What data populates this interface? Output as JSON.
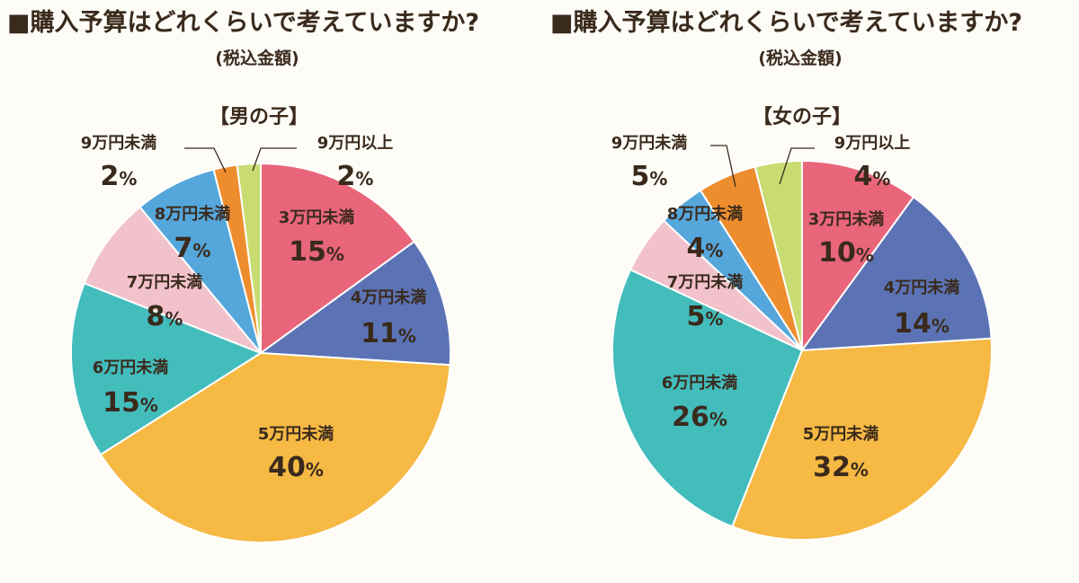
{
  "chart_data": [
    {
      "type": "pie",
      "title": "■購入予算はどれくらいで考えていますか?",
      "subtitle": "(税込金額)",
      "group_label": "【男の子】",
      "slices": [
        {
          "label": "9万円以上",
          "value": 2,
          "color": "#c8dc72"
        },
        {
          "label": "3万円未満",
          "value": 15,
          "color": "#e9667a"
        },
        {
          "label": "4万円未満",
          "value": 11,
          "color": "#5b73b4"
        },
        {
          "label": "5万円未満",
          "value": 40,
          "color": "#f5b944"
        },
        {
          "label": "6万円未満",
          "value": 15,
          "color": "#43bcbc"
        },
        {
          "label": "7万円未満",
          "value": 8,
          "color": "#f2c2cc"
        },
        {
          "label": "8万円未満",
          "value": 7,
          "color": "#55a6db"
        },
        {
          "label": "9万円未満",
          "value": 2,
          "color": "#ee8d2e"
        }
      ],
      "unit": "%"
    },
    {
      "type": "pie",
      "title": "■購入予算はどれくらいで考えていますか?",
      "subtitle": "(税込金額)",
      "group_label": "【女の子】",
      "slices": [
        {
          "label": "9万円以上",
          "value": 4,
          "color": "#c8dc72"
        },
        {
          "label": "3万円未満",
          "value": 10,
          "color": "#e9667a"
        },
        {
          "label": "4万円未満",
          "value": 14,
          "color": "#5b73b4"
        },
        {
          "label": "5万円未満",
          "value": 32,
          "color": "#f5b944"
        },
        {
          "label": "6万円未満",
          "value": 26,
          "color": "#43bcbc"
        },
        {
          "label": "7万円未満",
          "value": 5,
          "color": "#f2c2cc"
        },
        {
          "label": "8万円未満",
          "value": 4,
          "color": "#55a6db"
        },
        {
          "label": "9万円未満",
          "value": 5,
          "color": "#ee8d2e"
        }
      ],
      "unit": "%"
    }
  ]
}
